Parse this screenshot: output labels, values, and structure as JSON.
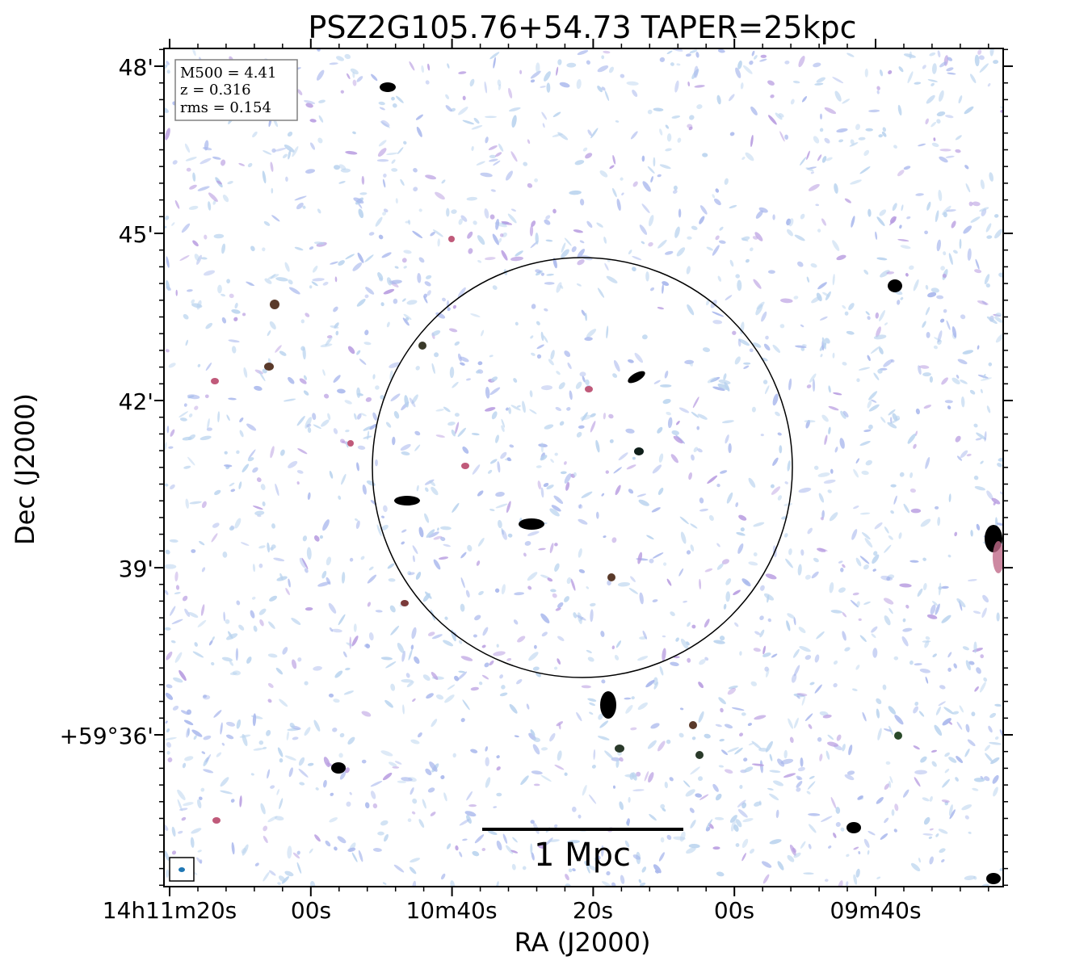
{
  "chart_data": {
    "type": "image",
    "title": "PSZ2G105.76+54.73 TAPER=25kpc",
    "xlabel": "RA (J2000)",
    "ylabel": "Dec (J2000)",
    "x_tick_labels": [
      "14h11m20s",
      "00s",
      "10m40s",
      "20s",
      "00s",
      "09m40s"
    ],
    "y_tick_labels": [
      "48'",
      "45'",
      "42'",
      "39'",
      "+59°36'"
    ],
    "info_box": [
      "M500 = 4.41",
      "z = 0.316",
      "rms = 0.154"
    ],
    "scale_bar_label": "1 Mpc",
    "colors": {
      "noise_light": "#b9d3ee",
      "noise_mid": "#a7b6ec",
      "noise_violet": "#b79be0",
      "source_edge": "#c06a8a",
      "source_core": "#000000"
    },
    "overlays": [
      "circle",
      "scale-bar",
      "beam-ellipse"
    ]
  }
}
